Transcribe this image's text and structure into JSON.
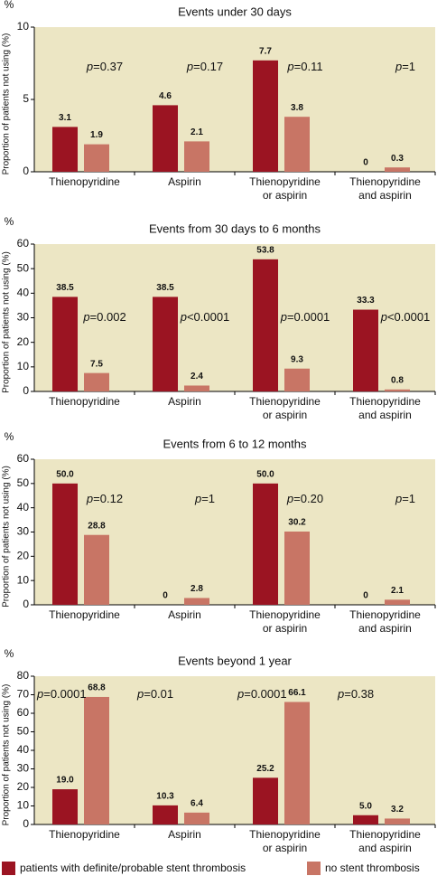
{
  "chart_data": [
    {
      "type": "bar",
      "title": "Events under 30 days",
      "y_unit": "%",
      "ylabel": "Proportion of patients not using (%)",
      "categories": [
        "Thienopyridine",
        "Aspirin",
        "Thienopyridine\nor aspirin",
        "Thienopyridine\nand aspirin"
      ],
      "series": [
        {
          "color": "#9b1422",
          "values": [
            3.1,
            4.6,
            7.7,
            0
          ]
        },
        {
          "color": "#c87565",
          "values": [
            1.9,
            2.1,
            3.8,
            0.3
          ]
        }
      ],
      "annotations": [
        "p=0.37",
        "p=0.17",
        "p=0.11",
        "p=1"
      ],
      "ylim": [
        0,
        10
      ],
      "yticks": [
        0,
        5,
        10
      ]
    },
    {
      "type": "bar",
      "title": "Events from 30 days to 6 months",
      "y_unit": "%",
      "ylabel": "Proportion of patients not using (%)",
      "categories": [
        "Thienopyridine",
        "Aspirin",
        "Thienopyridine\nor aspirin",
        "Thienopyridine\nand aspirin"
      ],
      "series": [
        {
          "color": "#9b1422",
          "values": [
            38.5,
            38.5,
            53.8,
            33.3
          ]
        },
        {
          "color": "#c87565",
          "values": [
            7.5,
            2.4,
            9.3,
            0.8
          ]
        }
      ],
      "annotations": [
        "p=0.002",
        "p<0.0001",
        "p=0.0001",
        "p<0.0001"
      ],
      "ylim": [
        0,
        60
      ],
      "yticks": [
        0,
        10,
        20,
        30,
        40,
        50,
        60
      ]
    },
    {
      "type": "bar",
      "title": "Events from 6 to 12 months",
      "y_unit": "%",
      "ylabel": "Proportion of patients not using (%)",
      "categories": [
        "Thienopyridine",
        "Aspirin",
        "Thienopyridine\nor aspirin",
        "Thienopyridine\nand aspirin"
      ],
      "series": [
        {
          "color": "#9b1422",
          "values": [
            50,
            0,
            50,
            0
          ],
          "value_labels": [
            "50.0",
            "0",
            "50.0",
            "0"
          ]
        },
        {
          "color": "#c87565",
          "values": [
            28.8,
            2.8,
            30.2,
            2.1
          ]
        }
      ],
      "annotations": [
        "p=0.12",
        "p=1",
        "p=0.20",
        "p=1"
      ],
      "ylim": [
        0,
        60
      ],
      "yticks": [
        0,
        10,
        20,
        30,
        40,
        50,
        60
      ]
    },
    {
      "type": "bar",
      "title": "Events beyond 1 year",
      "y_unit": "%",
      "ylabel": "Proportion of patients not using (%)",
      "categories": [
        "Thienopyridine",
        "Aspirin",
        "Thienopyridine\nor aspirin",
        "Thienopyridine\nand aspirin"
      ],
      "series": [
        {
          "name": "patients with definite/probable stent thrombosis",
          "color": "#9b1422",
          "values": [
            19,
            10.3,
            25.2,
            5
          ],
          "value_labels": [
            "19.0",
            "10.3",
            "25.2",
            "5.0"
          ]
        },
        {
          "name": "no stent thrombosis",
          "color": "#c87565",
          "values": [
            68.8,
            6.4,
            66.1,
            3.2
          ]
        }
      ],
      "annotations": [
        "p=0.0001",
        "p=0.01",
        "p=0.0001",
        "p=0.38"
      ],
      "ylim": [
        0,
        80
      ],
      "yticks": [
        0,
        10,
        20,
        30,
        40,
        50,
        60,
        70,
        80
      ]
    }
  ]
}
